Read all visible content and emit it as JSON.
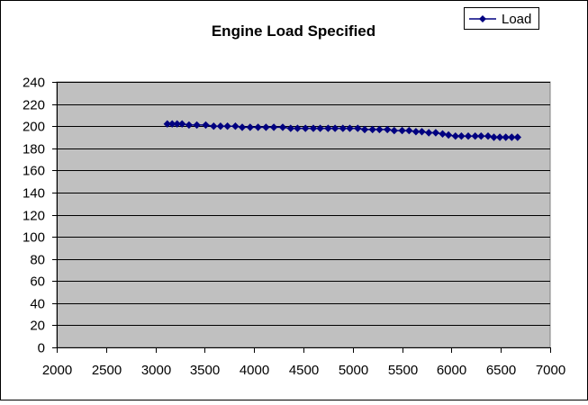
{
  "chart_data": {
    "type": "line",
    "title": "Engine Load Specified",
    "xlabel": "",
    "ylabel": "",
    "xlim": [
      2000,
      7000
    ],
    "ylim": [
      0,
      240
    ],
    "x_ticks": [
      2000,
      2500,
      3000,
      3500,
      4000,
      4500,
      5000,
      5500,
      6000,
      6500,
      7000
    ],
    "y_ticks": [
      0,
      20,
      40,
      60,
      80,
      100,
      120,
      140,
      160,
      180,
      200,
      220,
      240
    ],
    "grid": "horizontal",
    "legend_position": "top-right",
    "colors": {
      "series": "#000080",
      "plot_background": "#c0c0c0",
      "chart_background": "#ffffff",
      "gridline": "#000000"
    },
    "series": [
      {
        "name": "Load",
        "marker": "diamond",
        "x": [
          3120,
          3170,
          3220,
          3270,
          3340,
          3420,
          3510,
          3590,
          3660,
          3730,
          3810,
          3880,
          3960,
          4040,
          4120,
          4200,
          4290,
          4370,
          4440,
          4520,
          4600,
          4670,
          4750,
          4820,
          4900,
          4970,
          5050,
          5120,
          5200,
          5270,
          5350,
          5420,
          5500,
          5570,
          5640,
          5700,
          5770,
          5840,
          5910,
          5970,
          6040,
          6100,
          6170,
          6240,
          6300,
          6370,
          6430,
          6490,
          6550,
          6610,
          6670
        ],
        "values": [
          202,
          202,
          202,
          202,
          201,
          201,
          201,
          200,
          200,
          200,
          200,
          199,
          199,
          199,
          199,
          199,
          199,
          198,
          198,
          198,
          198,
          198,
          198,
          198,
          198,
          198,
          198,
          197,
          197,
          197,
          197,
          196,
          196,
          196,
          195,
          195,
          194,
          194,
          193,
          192,
          191,
          191,
          191,
          191,
          191,
          191,
          190,
          190,
          190,
          190,
          190
        ]
      }
    ]
  }
}
